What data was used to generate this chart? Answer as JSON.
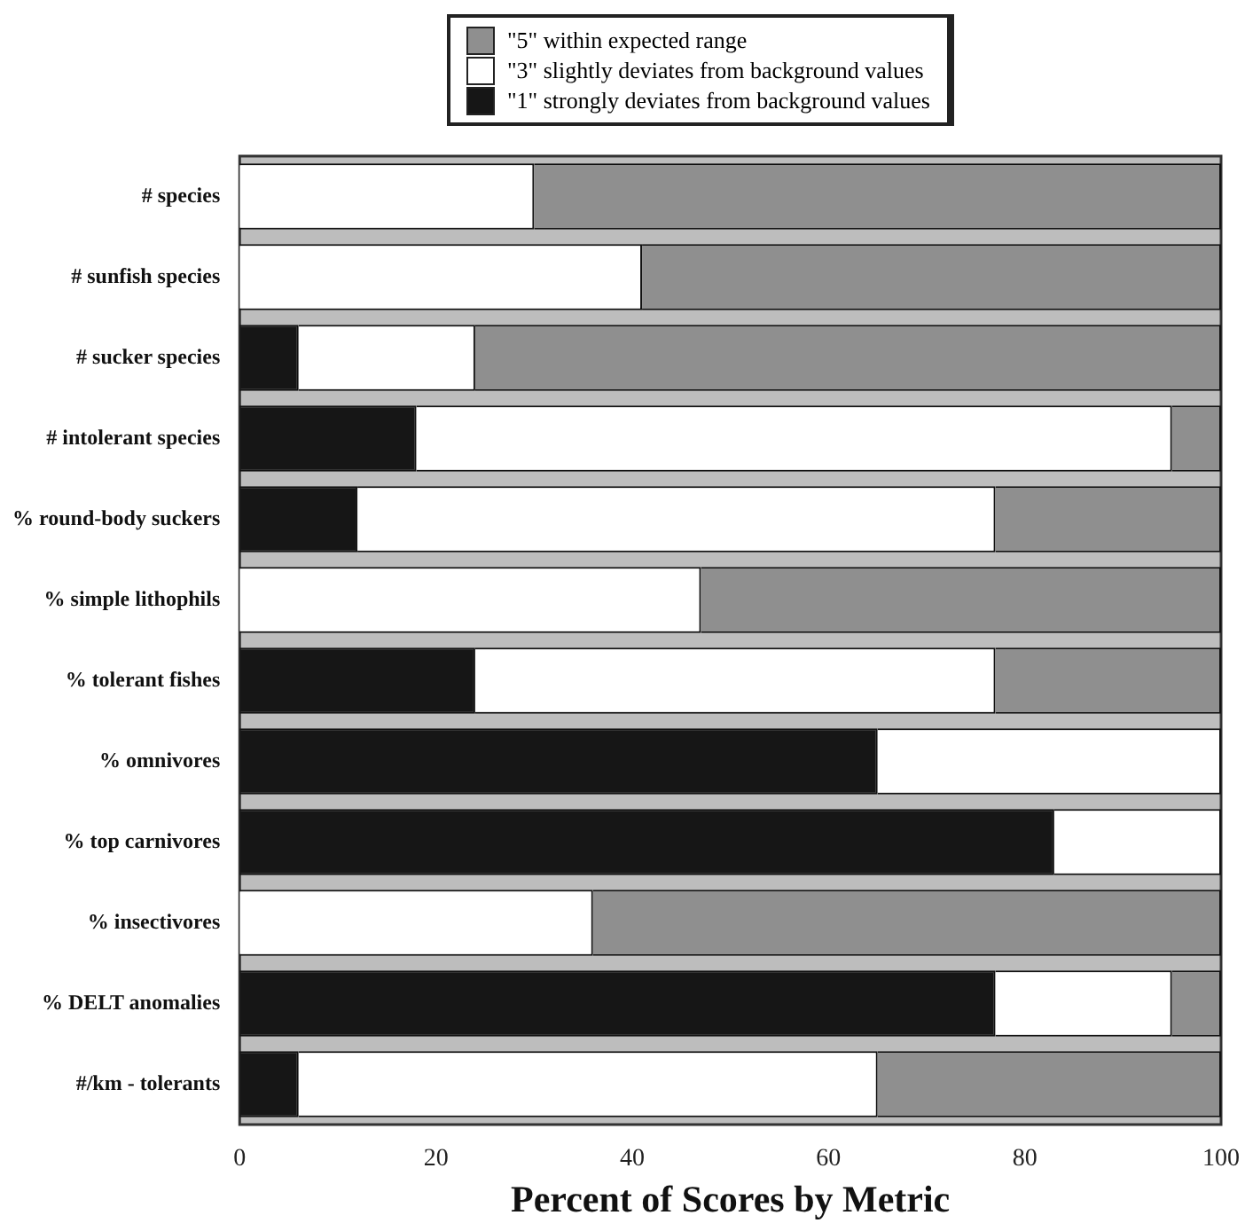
{
  "chart_data": {
    "type": "bar",
    "orientation": "horizontal",
    "stacked": true,
    "categories": [
      "# species",
      "# sunfish species",
      "# sucker species",
      "# intolerant species",
      "% round-body suckers",
      "% simple lithophils",
      "% tolerant fishes",
      "% omnivores",
      "% top carnivores",
      "% insectivores",
      "% DELT anomalies",
      "#/km - tolerants"
    ],
    "series": [
      {
        "name": "\"1\" strongly deviates from background values",
        "color": "#161616",
        "values": [
          0,
          0,
          6,
          18,
          12,
          0,
          24,
          65,
          83,
          0,
          77,
          6
        ]
      },
      {
        "name": "\"3\" slightly deviates from background values",
        "color": "#ffffff",
        "values": [
          30,
          41,
          18,
          77,
          65,
          47,
          53,
          35,
          17,
          36,
          18,
          59
        ]
      },
      {
        "name": "\"5\" within expected range",
        "color": "#8f8f8f",
        "values": [
          70,
          59,
          76,
          5,
          23,
          53,
          23,
          0,
          0,
          64,
          5,
          35
        ]
      }
    ],
    "xlabel": "Percent of Scores by Metric",
    "xlim": [
      0,
      100
    ],
    "xticks": [
      0,
      20,
      40,
      60,
      80,
      100
    ],
    "legend": "top right",
    "grid": false
  }
}
